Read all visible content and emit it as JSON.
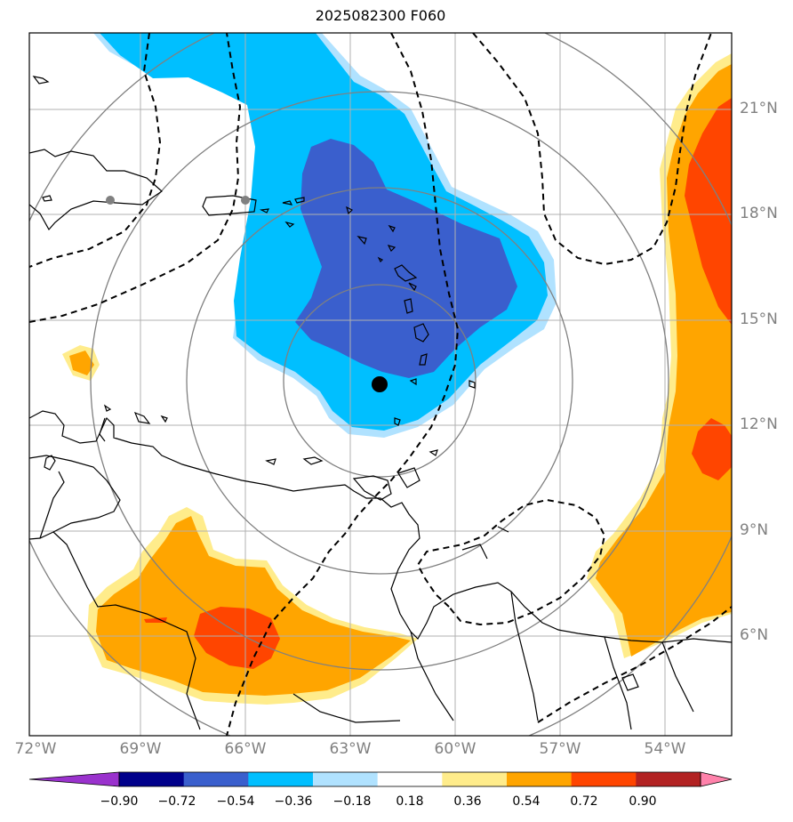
{
  "title": "2025082300 F060",
  "lon_labels": [
    "72°W",
    "69°W",
    "66°W",
    "63°W",
    "60°W",
    "57°W",
    "54°W"
  ],
  "lat_labels": [
    "21°N",
    "18°N",
    "15°N",
    "12°N",
    "9°N",
    "6°N"
  ],
  "colorbar": {
    "labels": [
      "−0.90",
      "−0.72",
      "−0.54",
      "−0.36",
      "−0.18",
      "0.18",
      "0.36",
      "0.54",
      "0.72",
      "0.90"
    ],
    "colors": [
      "#9a32cd",
      "#00008b",
      "#3a5fcd",
      "#00bfff",
      "#b0e2ff",
      "#ffffff",
      "#ffec8b",
      "#ffa500",
      "#ff4500",
      "#b22222",
      "#ff82ab"
    ]
  },
  "fill_colors": {
    "neg_strong": "#3a5fcd",
    "neg_mid": "#00bfff",
    "neg_weak": "#b0e2ff",
    "pos_weak": "#ffec8b",
    "pos_mid": "#ffa500",
    "pos_strong": "#ff4500"
  },
  "storm_center": {
    "lon": -62.3,
    "lat": 13.1
  },
  "grey_markers": [
    {
      "lon": -70.0,
      "lat": 18.4
    },
    {
      "lon": -66.0,
      "lat": 18.5
    }
  ],
  "range_rings": 4
}
